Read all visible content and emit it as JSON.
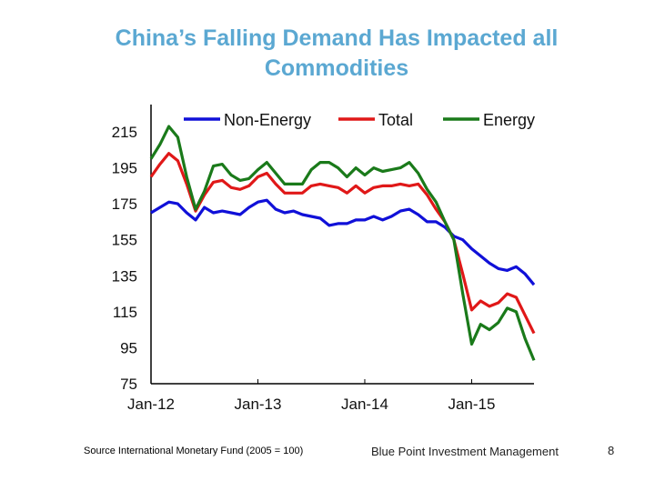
{
  "slide": {
    "title": "China’s Falling Demand Has Impacted all Commodities",
    "source": "Source International Monetary Fund (2005 = 100)",
    "firm": "Blue Point Investment Management",
    "page_number": "8",
    "title_color": "#5ba8d2"
  },
  "chart_data": {
    "type": "line",
    "title": "",
    "xlabel": "",
    "ylabel": "",
    "ylim": [
      75,
      215
    ],
    "yticks": [
      75,
      95,
      115,
      135,
      155,
      175,
      195,
      215
    ],
    "xticks": [
      "Jan-12",
      "Jan-13",
      "Jan-14",
      "Jan-15"
    ],
    "x_start": "Jan-12",
    "frequency": "monthly",
    "grid": false,
    "legend_position": "top",
    "series": [
      {
        "name": "Non-Energy",
        "color": "#1010d8",
        "values": [
          170,
          173,
          176,
          175,
          170,
          166,
          173,
          170,
          171,
          170,
          169,
          173,
          176,
          177,
          172,
          170,
          171,
          169,
          168,
          167,
          163,
          164,
          164,
          166,
          166,
          168,
          166,
          168,
          171,
          172,
          169,
          165,
          165,
          162,
          157,
          155,
          150,
          146,
          142,
          139,
          138,
          140,
          136,
          130
        ]
      },
      {
        "name": "Total",
        "color": "#e01818",
        "values": [
          190,
          197,
          203,
          199,
          186,
          171,
          180,
          187,
          188,
          184,
          183,
          185,
          190,
          192,
          186,
          181,
          181,
          181,
          185,
          186,
          185,
          184,
          181,
          185,
          181,
          184,
          185,
          185,
          186,
          185,
          186,
          180,
          172,
          165,
          155,
          136,
          116,
          121,
          118,
          120,
          125,
          123,
          113,
          103
        ]
      },
      {
        "name": "Energy",
        "color": "#1a7a1a",
        "values": [
          200,
          208,
          218,
          212,
          190,
          172,
          182,
          196,
          197,
          191,
          188,
          189,
          194,
          198,
          192,
          186,
          186,
          186,
          194,
          198,
          198,
          195,
          190,
          195,
          191,
          195,
          193,
          194,
          195,
          198,
          192,
          183,
          176,
          165,
          155,
          125,
          97,
          108,
          105,
          109,
          117,
          115,
          100,
          88
        ]
      }
    ]
  }
}
